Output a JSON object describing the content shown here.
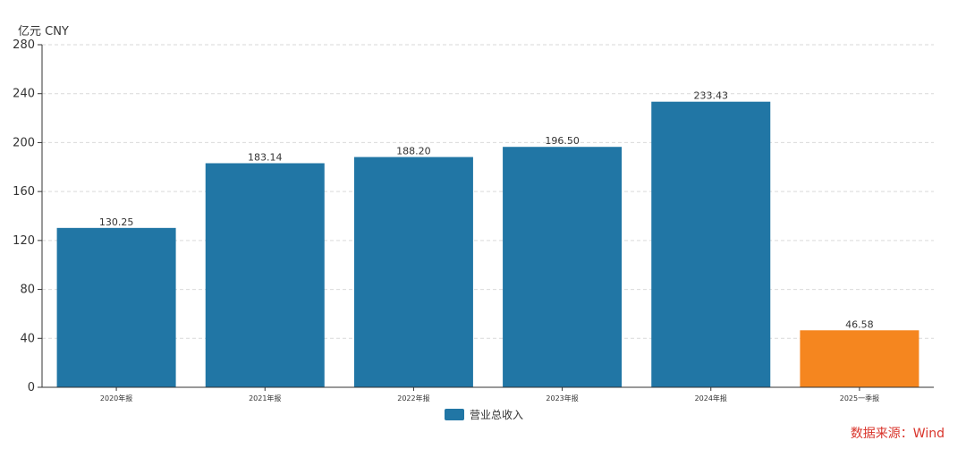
{
  "chart_data": {
    "type": "bar",
    "unit_label": "亿元  CNY",
    "categories": [
      "2020年报",
      "2021年报",
      "2022年报",
      "2023年报",
      "2024年报",
      "2025一季报"
    ],
    "series": [
      {
        "name": "营业总收入",
        "values": [
          130.25,
          183.14,
          188.2,
          196.5,
          233.43,
          46.58
        ],
        "value_labels": [
          "130.25",
          "183.14",
          "188.20",
          "196.50",
          "233.43",
          "46.58"
        ],
        "color": "#2176a5",
        "highlight_index": 5,
        "highlight_color": "#f5861f"
      }
    ],
    "ylim": [
      0,
      280
    ],
    "yticks": [
      0,
      40,
      80,
      120,
      160,
      200,
      240,
      280
    ],
    "grid": true,
    "legend_position": "bottom-center"
  },
  "source_text": "数据来源：Wind",
  "colors": {
    "source": "#d9342b",
    "axis": "#333333",
    "grid": "#d9d9d9"
  }
}
